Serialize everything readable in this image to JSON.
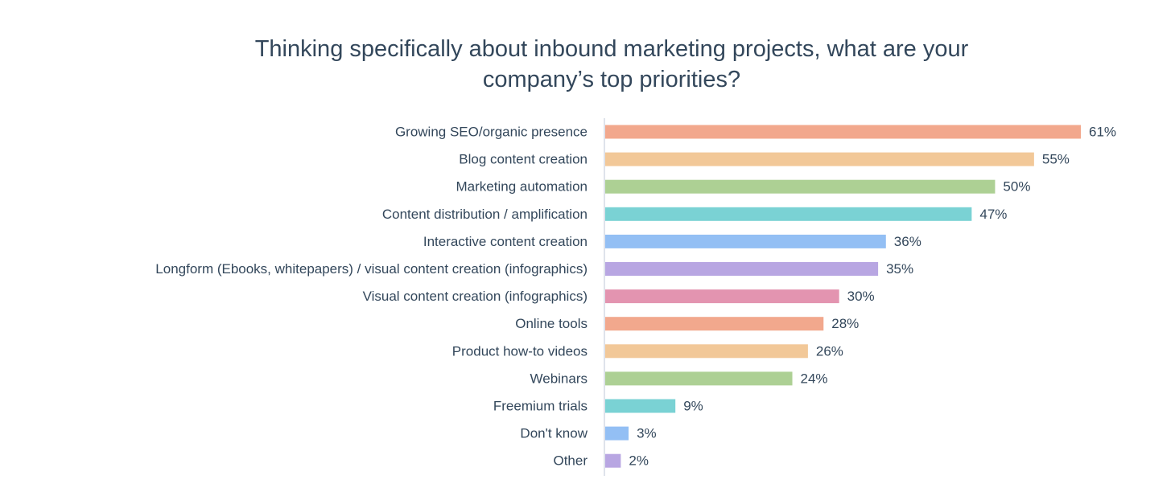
{
  "chart_data": {
    "type": "bar",
    "orientation": "horizontal",
    "title_lines": [
      "Thinking specifically about inbound marketing projects, what are your",
      "company’s top priorities?"
    ],
    "title": "Thinking specifically about inbound marketing projects, what are your company’s top priorities?",
    "xlabel": "",
    "ylabel": "",
    "unit": "%",
    "xlim": [
      0,
      61
    ],
    "grid": false,
    "legend": "none",
    "categories": [
      "Growing SEO/organic presence",
      "Blog content creation",
      "Marketing automation",
      "Content distribution / amplification",
      "Interactive content creation",
      "Longform (Ebooks, whitepapers) / visual content creation (infographics)",
      "Visual content creation (infographics)",
      "Online tools",
      "Product how-to videos",
      "Webinars",
      "Freemium trials",
      "Don't know",
      "Other"
    ],
    "values": [
      61,
      55,
      50,
      47,
      36,
      35,
      30,
      28,
      26,
      24,
      9,
      3,
      2
    ],
    "value_labels": [
      "61%",
      "55%",
      "50%",
      "47%",
      "36%",
      "35%",
      "30%",
      "28%",
      "26%",
      "24%",
      "9%",
      "3%",
      "2%"
    ],
    "bar_colors": [
      "#f2a88d",
      "#f2c898",
      "#add094",
      "#7ad2d4",
      "#93bff4",
      "#b8a6e2",
      "#e394b0",
      "#f2a88d",
      "#f2c898",
      "#add094",
      "#7ad2d4",
      "#93bff4",
      "#b8a6e2"
    ],
    "axis_color": "#dfe3eb",
    "text_color": "#33475b"
  }
}
